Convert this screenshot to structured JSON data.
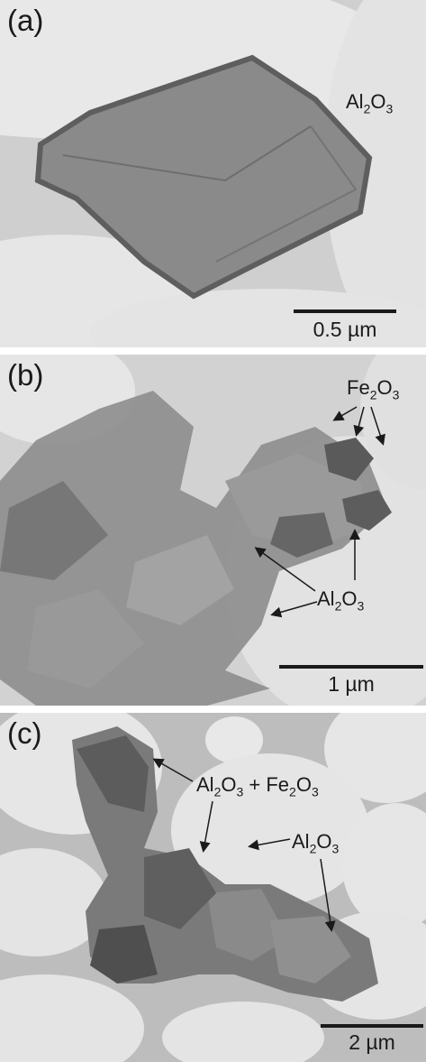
{
  "panels": [
    {
      "label": "(a)",
      "annotations": [
        {
          "name": "al2o3",
          "parts": [
            [
              "Al",
              ""
            ],
            [
              "2",
              "sub"
            ],
            [
              "O",
              ""
            ],
            [
              "3",
              "sub"
            ]
          ]
        }
      ],
      "scale": "0.5 µm"
    },
    {
      "label": "(b)",
      "annotations": [
        {
          "name": "fe2o3",
          "parts": [
            [
              "Fe",
              ""
            ],
            [
              "2",
              "sub"
            ],
            [
              "O",
              ""
            ],
            [
              "3",
              "sub"
            ]
          ]
        },
        {
          "name": "al2o3",
          "parts": [
            [
              "Al",
              ""
            ],
            [
              "2",
              "sub"
            ],
            [
              "O",
              ""
            ],
            [
              "3",
              "sub"
            ]
          ]
        }
      ],
      "scale": "1 µm"
    },
    {
      "label": "(c)",
      "annotations": [
        {
          "name": "al2o3-fe2o3",
          "parts": [
            [
              "Al",
              ""
            ],
            [
              "2",
              "sub"
            ],
            [
              "O",
              ""
            ],
            [
              "3",
              "sub"
            ],
            [
              " + Fe",
              ""
            ],
            [
              "2",
              "sub"
            ],
            [
              "O",
              ""
            ],
            [
              "3",
              "sub"
            ]
          ]
        },
        {
          "name": "al2o3",
          "parts": [
            [
              "Al",
              ""
            ],
            [
              "2",
              "sub"
            ],
            [
              "O",
              ""
            ],
            [
              "3",
              "sub"
            ]
          ]
        }
      ],
      "scale": "2 µm"
    }
  ],
  "colors": {
    "background": "#d9d9d9",
    "particle": "#7a7a7a",
    "ink": "#1a1a1a"
  }
}
